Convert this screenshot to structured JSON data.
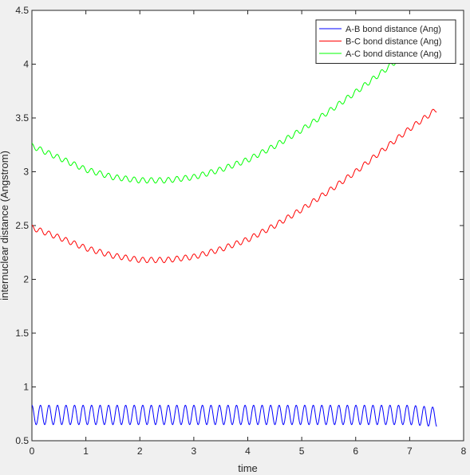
{
  "chart_data": {
    "type": "line",
    "title": "",
    "xlabel": "time",
    "ylabel": "internuclear distance (Angstrom)",
    "xlim": [
      0,
      8
    ],
    "ylim": [
      0.5,
      4.5
    ],
    "xticks": [
      0,
      1,
      2,
      3,
      4,
      5,
      6,
      7,
      8
    ],
    "yticks": [
      0.5,
      1,
      1.5,
      2,
      2.5,
      3,
      3.5,
      4,
      4.5
    ],
    "xtick_labels": [
      "0",
      "1",
      "2",
      "3",
      "4",
      "5",
      "6",
      "7",
      "8"
    ],
    "ytick_labels": [
      "0.5",
      "1",
      "1.5",
      "2",
      "2.5",
      "3",
      "3.5",
      "4",
      "4.5"
    ],
    "grid": false,
    "legend_position": "top-right",
    "series": [
      {
        "name": "A-B bond distance (Ang)",
        "color": "#0000ff",
        "x": [
          0,
          0.5,
          1,
          1.5,
          2,
          2.5,
          3,
          3.5,
          4,
          4.5,
          5,
          5.5,
          6,
          6.5,
          7,
          7.5
        ],
        "y": [
          0.74,
          0.74,
          0.74,
          0.74,
          0.74,
          0.74,
          0.74,
          0.74,
          0.74,
          0.74,
          0.74,
          0.74,
          0.74,
          0.74,
          0.74,
          0.72
        ],
        "oscillation_amplitude": 0.09,
        "oscillation_period": 0.158
      },
      {
        "name": "B-C bond distance (Ang)",
        "color": "#ff0000",
        "x": [
          0,
          0.5,
          1,
          1.5,
          2,
          2.5,
          3,
          3.5,
          4,
          4.5,
          5,
          5.5,
          6,
          6.5,
          7,
          7.5
        ],
        "y": [
          2.48,
          2.39,
          2.29,
          2.22,
          2.18,
          2.18,
          2.21,
          2.28,
          2.37,
          2.5,
          2.65,
          2.82,
          3.0,
          3.2,
          3.4,
          3.58
        ],
        "oscillation_amplitude": 0.025,
        "oscillation_period": 0.158
      },
      {
        "name": "A-C bond distance (Ang)",
        "color": "#00ff00",
        "x": [
          0,
          0.5,
          1,
          1.5,
          2,
          2.5,
          3,
          3.5,
          4,
          4.5,
          5,
          5.5,
          6,
          6.5,
          7,
          7.5
        ],
        "y": [
          3.24,
          3.13,
          3.02,
          2.95,
          2.92,
          2.92,
          2.95,
          3.02,
          3.11,
          3.24,
          3.39,
          3.56,
          3.74,
          3.93,
          4.13,
          4.33
        ],
        "oscillation_amplitude": 0.025,
        "oscillation_period": 0.158
      }
    ]
  }
}
